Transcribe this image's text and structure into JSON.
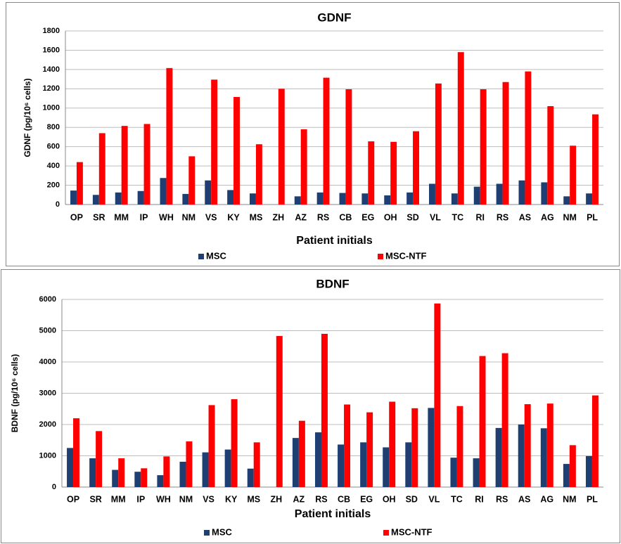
{
  "chart_data": [
    {
      "type": "bar",
      "title": "GDNF",
      "x_label": "Patient initials",
      "y_label": "GDNF (pg/10⁶ cells)",
      "categories": [
        "OP",
        "SR",
        "MM",
        "IP",
        "WH",
        "NM",
        "VS",
        "KY",
        "MS",
        "ZH",
        "AZ",
        "RS",
        "CB",
        "EG",
        "OH",
        "SD",
        "VL",
        "TC",
        "RI",
        "RS",
        "AS",
        "AG",
        "NM",
        "PL"
      ],
      "series": [
        {
          "name": "MSC",
          "color": "#1f3f73",
          "values": [
            145,
            100,
            125,
            140,
            275,
            110,
            250,
            150,
            115,
            0,
            85,
            125,
            120,
            115,
            95,
            125,
            215,
            115,
            185,
            215,
            250,
            230,
            85,
            115
          ]
        },
        {
          "name": "MSC-NTF",
          "color": "#ff0000",
          "values": [
            440,
            740,
            815,
            835,
            1415,
            500,
            1295,
            1115,
            625,
            1200,
            780,
            1315,
            1195,
            655,
            650,
            760,
            1255,
            1580,
            1195,
            1270,
            1380,
            1020,
            610,
            935
          ]
        }
      ],
      "ylim": [
        0,
        1800
      ],
      "yticks": [
        0,
        200,
        400,
        600,
        800,
        1000,
        1200,
        1400,
        1600,
        1800
      ],
      "grid": true
    },
    {
      "type": "bar",
      "title": "BDNF",
      "x_label": "Patient initials",
      "y_label": "BDNF (pg/10⁶ cells)",
      "categories": [
        "OP",
        "SR",
        "MM",
        "IP",
        "WH",
        "NM",
        "VS",
        "KY",
        "MS",
        "ZH",
        "AZ",
        "RS",
        "CB",
        "EG",
        "OH",
        "SD",
        "VL",
        "TC",
        "RI",
        "RS",
        "AS",
        "AG",
        "NM",
        "PL"
      ],
      "series": [
        {
          "name": "MSC",
          "color": "#1f3f73",
          "values": [
            1250,
            920,
            550,
            490,
            380,
            810,
            1110,
            1200,
            590,
            0,
            1570,
            1750,
            1360,
            1430,
            1270,
            1430,
            2530,
            940,
            920,
            1890,
            2000,
            1880,
            740,
            990
          ]
        },
        {
          "name": "MSC-NTF",
          "color": "#ff0000",
          "values": [
            2200,
            1790,
            920,
            600,
            980,
            1460,
            2620,
            2810,
            1430,
            4830,
            2120,
            4900,
            2640,
            2390,
            2730,
            2520,
            5870,
            2590,
            4190,
            4280,
            2650,
            2670,
            1340,
            2930
          ]
        }
      ],
      "ylim": [
        0,
        6000
      ],
      "yticks": [
        0,
        1000,
        2000,
        3000,
        4000,
        5000,
        6000
      ],
      "grid": true
    }
  ]
}
